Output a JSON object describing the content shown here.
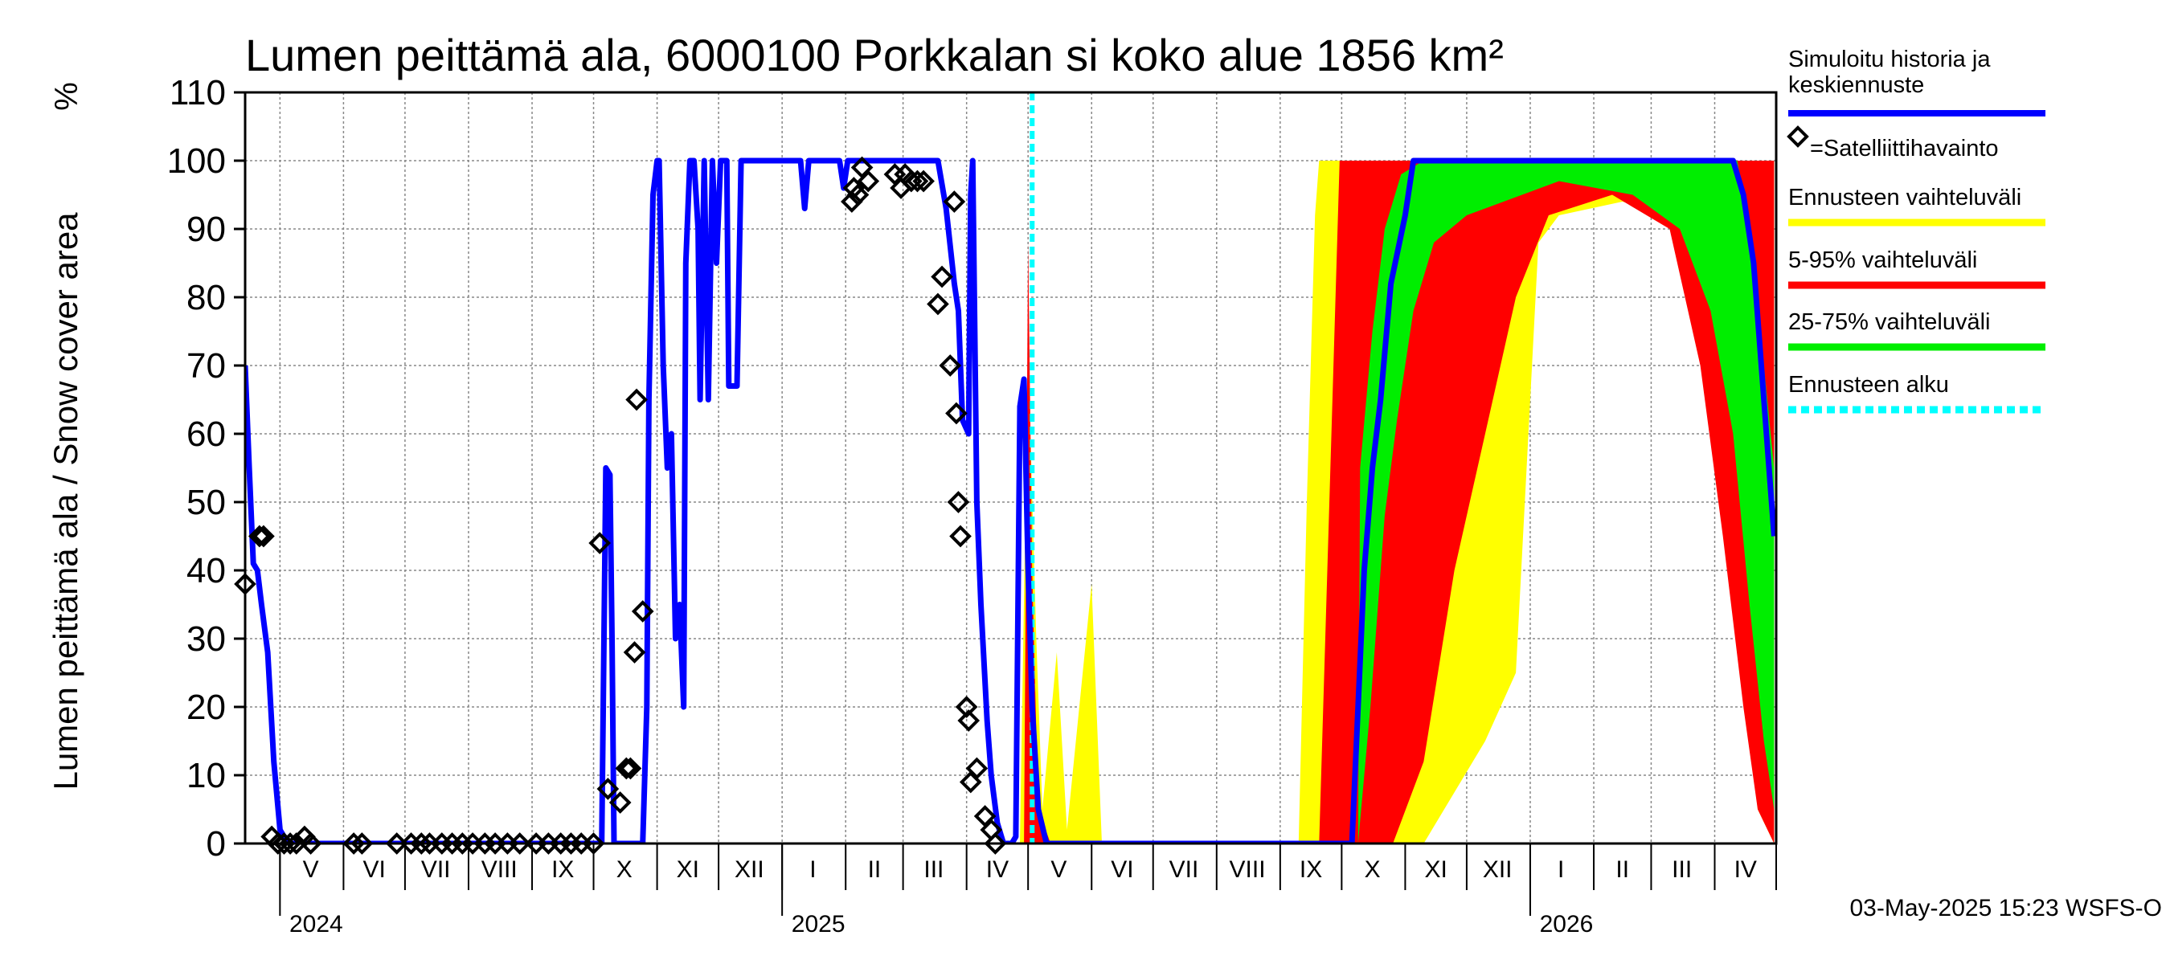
{
  "chart_data": {
    "type": "line",
    "title": "Lumen peittämä ala, 6000100 Porkkalan si koko alue 1856 km²",
    "ylabel": "Lumen peittämä ala / Snow cover area",
    "yunit": "%",
    "ylim": [
      0,
      110
    ],
    "yticks": [
      0,
      10,
      20,
      30,
      40,
      50,
      60,
      70,
      80,
      90,
      100,
      110
    ],
    "xlim": [
      "2024-04-14",
      "2026-05-01"
    ],
    "grid": true,
    "months": [
      {
        "label": "V",
        "date": "2024-05-16"
      },
      {
        "label": "VI",
        "date": "2024-06-16"
      },
      {
        "label": "VII",
        "date": "2024-07-16"
      },
      {
        "label": "VIII",
        "date": "2024-08-16"
      },
      {
        "label": "IX",
        "date": "2024-09-16"
      },
      {
        "label": "X",
        "date": "2024-10-16"
      },
      {
        "label": "XI",
        "date": "2024-11-16"
      },
      {
        "label": "XII",
        "date": "2024-12-16"
      },
      {
        "label": "I",
        "date": "2025-01-16"
      },
      {
        "label": "II",
        "date": "2025-02-15"
      },
      {
        "label": "III",
        "date": "2025-03-16"
      },
      {
        "label": "IV",
        "date": "2025-04-16"
      },
      {
        "label": "V",
        "date": "2025-05-16"
      },
      {
        "label": "VI",
        "date": "2025-06-16"
      },
      {
        "label": "VII",
        "date": "2025-07-16"
      },
      {
        "label": "VIII",
        "date": "2025-08-16"
      },
      {
        "label": "IX",
        "date": "2025-09-16"
      },
      {
        "label": "X",
        "date": "2025-10-16"
      },
      {
        "label": "XI",
        "date": "2025-11-16"
      },
      {
        "label": "XII",
        "date": "2025-12-16"
      },
      {
        "label": "I",
        "date": "2026-01-16"
      },
      {
        "label": "II",
        "date": "2026-02-15"
      },
      {
        "label": "III",
        "date": "2026-03-16"
      },
      {
        "label": "IV",
        "date": "2026-04-16"
      }
    ],
    "month_boundaries": [
      "2024-05-01",
      "2024-06-01",
      "2024-07-01",
      "2024-08-01",
      "2024-09-01",
      "2024-10-01",
      "2024-11-01",
      "2024-12-01",
      "2025-01-01",
      "2025-02-01",
      "2025-03-01",
      "2025-04-01",
      "2025-05-01",
      "2025-06-01",
      "2025-07-01",
      "2025-08-01",
      "2025-09-01",
      "2025-10-01",
      "2025-11-01",
      "2025-12-01",
      "2026-01-01",
      "2026-02-01",
      "2026-03-01",
      "2026-04-01",
      "2026-05-01"
    ],
    "years": [
      {
        "label": "2024",
        "date": "2024-05-01"
      },
      {
        "label": "2025",
        "date": "2025-01-01"
      },
      {
        "label": "2026",
        "date": "2026-01-01"
      }
    ],
    "forecast_start": "2025-05-03",
    "series": [
      {
        "name": "Simuloitu historia ja keskiennuste",
        "color": "#0000ff",
        "points": [
          [
            "2024-04-14",
            70
          ],
          [
            "2024-04-16",
            55
          ],
          [
            "2024-04-18",
            41
          ],
          [
            "2024-04-20",
            40
          ],
          [
            "2024-04-22",
            35
          ],
          [
            "2024-04-25",
            28
          ],
          [
            "2024-04-28",
            12
          ],
          [
            "2024-05-01",
            2
          ],
          [
            "2024-05-05",
            0
          ],
          [
            "2024-10-05",
            0
          ],
          [
            "2024-10-07",
            55
          ],
          [
            "2024-10-09",
            54
          ],
          [
            "2024-10-10",
            30
          ],
          [
            "2024-10-11",
            0
          ],
          [
            "2024-10-25",
            0
          ],
          [
            "2024-10-27",
            20
          ],
          [
            "2024-10-28",
            65
          ],
          [
            "2024-10-30",
            95
          ],
          [
            "2024-11-01",
            100
          ],
          [
            "2024-11-02",
            100
          ],
          [
            "2024-11-04",
            70
          ],
          [
            "2024-11-06",
            55
          ],
          [
            "2024-11-08",
            60
          ],
          [
            "2024-11-10",
            30
          ],
          [
            "2024-11-12",
            35
          ],
          [
            "2024-11-14",
            20
          ],
          [
            "2024-11-15",
            85
          ],
          [
            "2024-11-17",
            100
          ],
          [
            "2024-11-19",
            100
          ],
          [
            "2024-11-21",
            90
          ],
          [
            "2024-11-22",
            65
          ],
          [
            "2024-11-24",
            100
          ],
          [
            "2024-11-26",
            65
          ],
          [
            "2024-11-28",
            100
          ],
          [
            "2024-11-30",
            85
          ],
          [
            "2024-12-02",
            100
          ],
          [
            "2024-12-05",
            100
          ],
          [
            "2024-12-06",
            67
          ],
          [
            "2024-12-10",
            67
          ],
          [
            "2024-12-12",
            100
          ],
          [
            "2025-01-10",
            100
          ],
          [
            "2025-01-12",
            93
          ],
          [
            "2025-01-14",
            100
          ],
          [
            "2025-01-29",
            100
          ],
          [
            "2025-01-31",
            96
          ],
          [
            "2025-02-02",
            100
          ],
          [
            "2025-03-18",
            100
          ],
          [
            "2025-03-22",
            93
          ],
          [
            "2025-03-26",
            82
          ],
          [
            "2025-03-28",
            78
          ],
          [
            "2025-03-30",
            62
          ],
          [
            "2025-04-02",
            60
          ],
          [
            "2025-04-03",
            95
          ],
          [
            "2025-04-04",
            100
          ],
          [
            "2025-04-06",
            50
          ],
          [
            "2025-04-08",
            35
          ],
          [
            "2025-04-11",
            18
          ],
          [
            "2025-04-13",
            10
          ],
          [
            "2025-04-16",
            3
          ],
          [
            "2025-04-19",
            0
          ],
          [
            "2025-04-23",
            0
          ],
          [
            "2025-04-25",
            1
          ],
          [
            "2025-04-27",
            64
          ],
          [
            "2025-04-29",
            68
          ],
          [
            "2025-05-01",
            40
          ],
          [
            "2025-05-03",
            20
          ],
          [
            "2025-05-06",
            5
          ],
          [
            "2025-05-10",
            0
          ],
          [
            "2025-10-06",
            0
          ],
          [
            "2025-10-12",
            40
          ],
          [
            "2025-10-16",
            55
          ],
          [
            "2025-10-20",
            65
          ],
          [
            "2025-10-25",
            82
          ],
          [
            "2025-11-01",
            92
          ],
          [
            "2025-11-05",
            100
          ],
          [
            "2025-11-10",
            100
          ],
          [
            "2026-04-10",
            100
          ],
          [
            "2026-04-15",
            95
          ],
          [
            "2026-04-20",
            85
          ],
          [
            "2026-04-25",
            65
          ],
          [
            "2026-04-30",
            45
          ]
        ]
      },
      {
        "name": "=Satelliittihavainto",
        "color": "#000000",
        "points": [
          [
            "2024-04-14",
            38
          ],
          [
            "2024-04-21",
            45
          ],
          [
            "2024-04-23",
            45
          ],
          [
            "2024-04-27",
            1
          ],
          [
            "2024-04-30",
            0
          ],
          [
            "2024-05-03",
            0
          ],
          [
            "2024-05-06",
            0
          ],
          [
            "2024-05-09",
            0
          ],
          [
            "2024-05-13",
            1
          ],
          [
            "2024-05-16",
            0
          ],
          [
            "2024-06-06",
            0
          ],
          [
            "2024-06-10",
            0
          ],
          [
            "2024-06-27",
            0
          ],
          [
            "2024-07-04",
            0
          ],
          [
            "2024-07-09",
            0
          ],
          [
            "2024-07-13",
            0
          ],
          [
            "2024-07-19",
            0
          ],
          [
            "2024-07-24",
            0
          ],
          [
            "2024-07-29",
            0
          ],
          [
            "2024-08-03",
            0
          ],
          [
            "2024-08-09",
            0
          ],
          [
            "2024-08-14",
            0
          ],
          [
            "2024-08-20",
            0
          ],
          [
            "2024-08-26",
            0
          ],
          [
            "2024-09-03",
            0
          ],
          [
            "2024-09-09",
            0
          ],
          [
            "2024-09-15",
            0
          ],
          [
            "2024-09-20",
            0
          ],
          [
            "2024-09-25",
            0
          ],
          [
            "2024-10-01",
            0
          ],
          [
            "2024-10-04",
            44
          ],
          [
            "2024-10-08",
            8
          ],
          [
            "2024-10-14",
            6
          ],
          [
            "2024-10-17",
            11
          ],
          [
            "2024-10-19",
            11
          ],
          [
            "2024-10-21",
            28
          ],
          [
            "2024-10-22",
            65
          ],
          [
            "2024-10-25",
            34
          ],
          [
            "2025-02-04",
            94
          ],
          [
            "2025-02-05",
            96
          ],
          [
            "2025-02-07",
            95
          ],
          [
            "2025-02-09",
            99
          ],
          [
            "2025-02-12",
            97
          ],
          [
            "2025-02-25",
            98
          ],
          [
            "2025-02-28",
            96
          ],
          [
            "2025-03-02",
            98
          ],
          [
            "2025-03-05",
            97
          ],
          [
            "2025-03-08",
            97
          ],
          [
            "2025-03-11",
            97
          ],
          [
            "2025-03-18",
            79
          ],
          [
            "2025-03-20",
            83
          ],
          [
            "2025-03-24",
            70
          ],
          [
            "2025-03-26",
            94
          ],
          [
            "2025-03-27",
            63
          ],
          [
            "2025-03-28",
            50
          ],
          [
            "2025-03-29",
            45
          ],
          [
            "2025-04-01",
            20
          ],
          [
            "2025-04-02",
            18
          ],
          [
            "2025-04-03",
            9
          ],
          [
            "2025-04-06",
            11
          ],
          [
            "2025-04-10",
            4
          ],
          [
            "2025-04-13",
            2
          ],
          [
            "2025-04-15",
            0
          ]
        ]
      },
      {
        "name": "Ennusteen vaihteluväli",
        "color": "#ffff00"
      },
      {
        "name": "5-95% vaihteluväli",
        "color": "#ff0000"
      },
      {
        "name": "25-75% vaihteluväli",
        "color": "#00ee00"
      },
      {
        "name": "Ennusteen alku",
        "color": "#00ffff"
      }
    ],
    "bands": {
      "yellow": {
        "lower": [
          [
            "2025-04-27",
            0
          ],
          [
            "2025-05-01",
            0
          ],
          [
            "2025-09-10",
            0
          ],
          [
            "2025-09-18",
            0
          ],
          [
            "2025-09-20",
            0
          ],
          [
            "2025-10-26",
            0
          ],
          [
            "2025-11-10",
            0
          ],
          [
            "2025-12-10",
            15
          ],
          [
            "2025-12-25",
            25
          ],
          [
            "2026-01-05",
            88
          ],
          [
            "2026-01-15",
            92
          ],
          [
            "2026-02-15",
            94
          ],
          [
            "2026-03-10",
            92
          ],
          [
            "2026-03-25",
            80
          ],
          [
            "2026-04-05",
            55
          ],
          [
            "2026-04-15",
            25
          ],
          [
            "2026-04-22",
            5
          ],
          [
            "2026-04-30",
            0
          ]
        ],
        "upper": [
          [
            "2025-04-27",
            0
          ],
          [
            "2025-05-01",
            72
          ],
          [
            "2025-05-05",
            30
          ],
          [
            "2025-05-08",
            5
          ],
          [
            "2025-05-15",
            28
          ],
          [
            "2025-05-20",
            2
          ],
          [
            "2025-06-01",
            38
          ],
          [
            "2025-06-06",
            0
          ],
          [
            "2025-09-10",
            0
          ],
          [
            "2025-09-14",
            50
          ],
          [
            "2025-09-18",
            92
          ],
          [
            "2025-09-20",
            100
          ],
          [
            "2026-04-30",
            100
          ]
        ]
      },
      "red": {
        "lower": [
          [
            "2025-04-29",
            0
          ],
          [
            "2025-05-05",
            0
          ],
          [
            "2025-09-20",
            0
          ],
          [
            "2025-10-26",
            0
          ],
          [
            "2025-11-10",
            12
          ],
          [
            "2025-11-25",
            40
          ],
          [
            "2025-12-10",
            60
          ],
          [
            "2025-12-25",
            80
          ],
          [
            "2026-01-10",
            92
          ],
          [
            "2026-02-10",
            95
          ],
          [
            "2026-03-10",
            90
          ],
          [
            "2026-03-25",
            70
          ],
          [
            "2026-04-05",
            45
          ],
          [
            "2026-04-15",
            20
          ],
          [
            "2026-04-22",
            5
          ],
          [
            "2026-04-30",
            0
          ]
        ],
        "upper": [
          [
            "2025-04-29",
            0
          ],
          [
            "2025-05-01",
            88
          ],
          [
            "2025-05-03",
            40
          ],
          [
            "2025-05-06",
            5
          ],
          [
            "2025-05-12",
            0
          ],
          [
            "2025-09-20",
            0
          ],
          [
            "2025-09-26",
            60
          ],
          [
            "2025-09-30",
            100
          ],
          [
            "2026-04-30",
            100
          ]
        ]
      },
      "green": {
        "lower": [
          [
            "2025-10-09",
            0
          ],
          [
            "2025-10-15",
            20
          ],
          [
            "2025-10-22",
            48
          ],
          [
            "2025-10-28",
            62
          ],
          [
            "2025-11-05",
            78
          ],
          [
            "2025-11-15",
            88
          ],
          [
            "2025-12-01",
            92
          ],
          [
            "2026-01-15",
            97
          ],
          [
            "2026-02-20",
            95
          ],
          [
            "2026-03-15",
            90
          ],
          [
            "2026-03-30",
            78
          ],
          [
            "2026-04-10",
            60
          ],
          [
            "2026-04-18",
            35
          ],
          [
            "2026-04-25",
            15
          ],
          [
            "2026-04-30",
            5
          ]
        ],
        "upper": [
          [
            "2025-10-09",
            0
          ],
          [
            "2025-10-10",
            55
          ],
          [
            "2025-10-16",
            75
          ],
          [
            "2025-10-22",
            90
          ],
          [
            "2025-10-30",
            98
          ],
          [
            "2025-11-10",
            100
          ],
          [
            "2026-04-12",
            100
          ],
          [
            "2026-04-18",
            90
          ],
          [
            "2026-04-25",
            70
          ],
          [
            "2026-04-30",
            55
          ]
        ]
      }
    },
    "footer": "03-May-2025 15:23 WSFS-O"
  }
}
